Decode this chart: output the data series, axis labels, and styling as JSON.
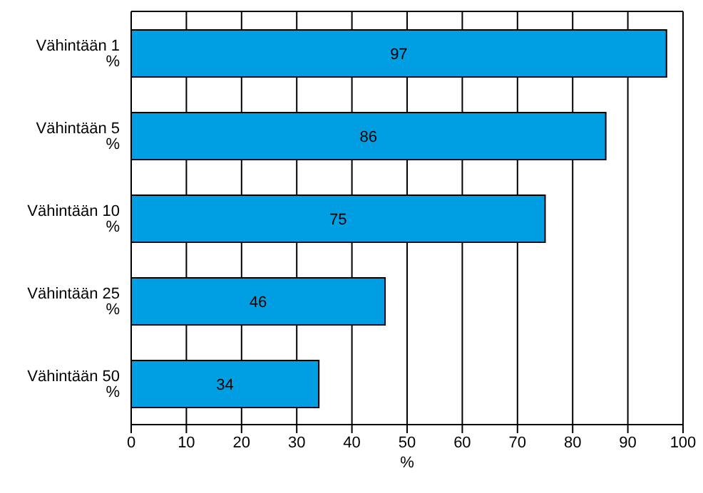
{
  "chart_data": {
    "type": "bar",
    "orientation": "horizontal",
    "categories": [
      "Vähintään 1 %",
      "Vähintään 5 %",
      "Vähintään 10 %",
      "Vähintään 25 %",
      "Vähintään 50 %"
    ],
    "values": [
      97,
      86,
      75,
      46,
      34
    ],
    "color": "#009fe3",
    "xlim": [
      0,
      100
    ],
    "xticks": [
      0,
      10,
      20,
      30,
      40,
      50,
      60,
      70,
      80,
      90,
      100
    ],
    "xlabel": "%",
    "grid": "x",
    "data_labels": true
  }
}
